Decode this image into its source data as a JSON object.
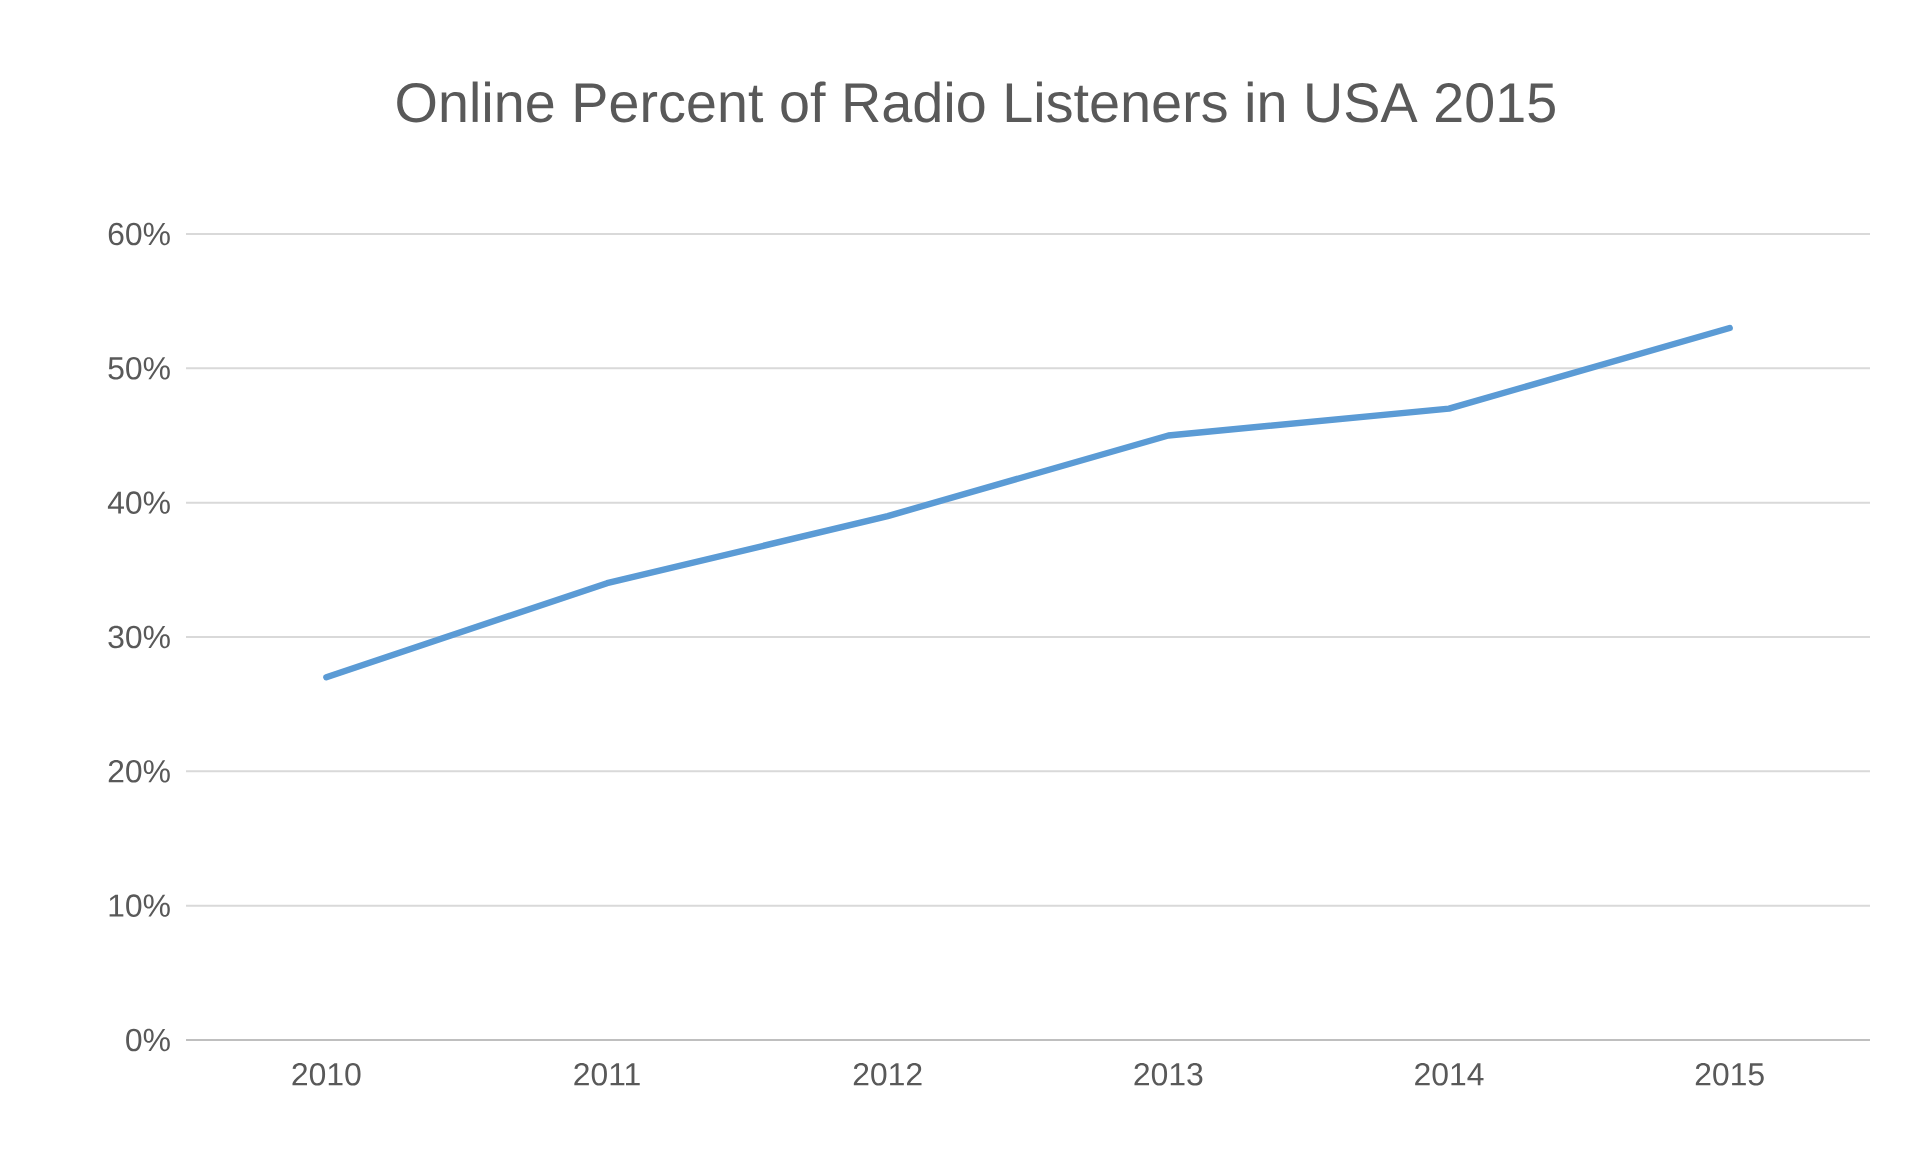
{
  "chart_data": {
    "type": "line",
    "title": "Online Percent of Radio Listeners in USA 2015",
    "categories": [
      "2010",
      "2011",
      "2012",
      "2013",
      "2014",
      "2015"
    ],
    "series": [
      {
        "color": "#5b9bd5",
        "values": [
          27,
          34,
          39,
          45,
          47,
          53
        ]
      }
    ],
    "ylim": [
      0,
      60
    ],
    "yticks": [
      {
        "value": 0,
        "label": "0%"
      },
      {
        "value": 10,
        "label": "10%"
      },
      {
        "value": 20,
        "label": "20%"
      },
      {
        "value": 30,
        "label": "30%"
      },
      {
        "value": 40,
        "label": "40%"
      },
      {
        "value": 50,
        "label": "50%"
      },
      {
        "value": 60,
        "label": "60%"
      }
    ],
    "grid": "y",
    "line_style": "solid"
  }
}
